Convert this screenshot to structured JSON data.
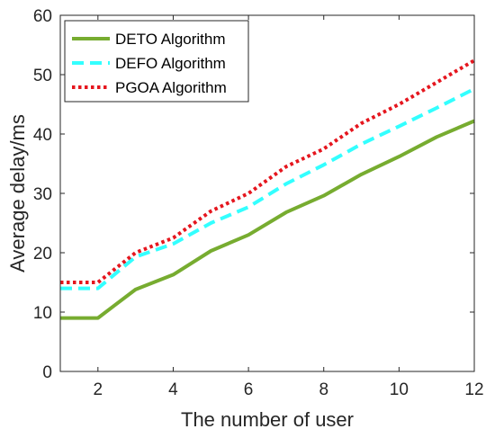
{
  "chart_data": {
    "type": "line",
    "title": "",
    "xlabel": "The number of user",
    "ylabel": "Average delay/ms",
    "xlim": [
      1,
      12
    ],
    "ylim": [
      0,
      60
    ],
    "xticks": [
      2,
      4,
      6,
      8,
      10,
      12
    ],
    "yticks": [
      0,
      10,
      20,
      30,
      40,
      50,
      60
    ],
    "grid": false,
    "legend_position": "top-left",
    "x": [
      1,
      2,
      3,
      4,
      5,
      6,
      7,
      8,
      9,
      10,
      11,
      12
    ],
    "series": [
      {
        "name": "DETO Algorithm",
        "color": "#77ac30",
        "style": "solid",
        "values": [
          9,
          9,
          13.8,
          16.3,
          20.3,
          23,
          26.8,
          29.6,
          33.2,
          36.2,
          39.5,
          42.2
        ]
      },
      {
        "name": "DEFO Algorithm",
        "color": "#33ffff",
        "style": "dashed",
        "values": [
          14,
          14,
          19.3,
          21.5,
          25,
          27.7,
          31.6,
          34.8,
          38.3,
          41.3,
          44.4,
          47.6
        ]
      },
      {
        "name": "PGOA Algorithm",
        "color": "#e5161e",
        "style": "dotted",
        "values": [
          15,
          15,
          20,
          22.5,
          27,
          30,
          34.5,
          37.5,
          41.8,
          45,
          48.7,
          52.4
        ]
      }
    ]
  }
}
